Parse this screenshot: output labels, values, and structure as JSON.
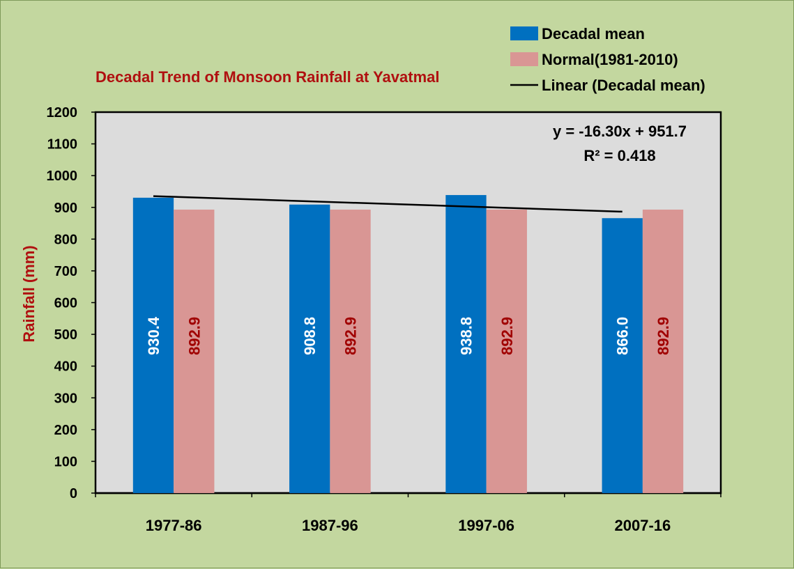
{
  "chart_data": {
    "type": "bar",
    "title": "Decadal Trend of Monsoon Rainfall at Yavatmal",
    "xlabel": "",
    "ylabel": "Rainfall (mm)",
    "ylim": [
      0,
      1200
    ],
    "ytick_step": 100,
    "categories": [
      "1977-86",
      "1987-96",
      "1997-06",
      "2007-16"
    ],
    "series": [
      {
        "name": "Decadal mean",
        "values": [
          930.4,
          908.8,
          938.8,
          866.0
        ],
        "labels": [
          "930.4",
          "908.8",
          "938.8",
          "866.0"
        ],
        "color": "#0070c0",
        "label_color": "#ffffff"
      },
      {
        "name": "Normal(1981-2010)",
        "values": [
          892.9,
          892.9,
          892.9,
          892.9
        ],
        "labels": [
          "892.9",
          "892.9",
          "892.9",
          "892.9"
        ],
        "color": "#d99694",
        "label_color": "#a00000"
      }
    ],
    "trendline": {
      "name": "Linear (Decadal mean)",
      "slope": -16.3,
      "intercept": 951.7,
      "equation": "y = -16.30x + 951.7",
      "r_squared": "R² = 0.418",
      "color": "#000000"
    },
    "legend_position": "top-right",
    "grid": false,
    "plot_background": "#dcdcdc",
    "page_background": "#c3d79f"
  }
}
